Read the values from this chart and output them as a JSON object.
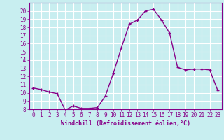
{
  "hours": [
    0,
    1,
    2,
    3,
    4,
    5,
    6,
    7,
    8,
    9,
    10,
    11,
    12,
    13,
    14,
    15,
    16,
    17,
    18,
    19,
    20,
    21,
    22,
    23
  ],
  "values": [
    10.6,
    10.4,
    10.1,
    9.9,
    7.9,
    8.4,
    8.1,
    8.1,
    8.2,
    9.6,
    12.4,
    15.5,
    18.4,
    18.9,
    20.0,
    20.2,
    18.9,
    17.3,
    13.1,
    12.8,
    12.9,
    12.9,
    12.8,
    10.3
  ],
  "line_color": "#880088",
  "marker": "+",
  "marker_color": "#880088",
  "bg_color": "#c8eef0",
  "grid_color": "#ffffff",
  "xlabel": "Windchill (Refroidissement éolien,°C)",
  "xlabel_color": "#880088",
  "tick_color": "#880088",
  "ylim": [
    8,
    21
  ],
  "xlim": [
    -0.5,
    23.5
  ],
  "yticks": [
    8,
    9,
    10,
    11,
    12,
    13,
    14,
    15,
    16,
    17,
    18,
    19,
    20
  ],
  "xticks": [
    0,
    1,
    2,
    3,
    4,
    5,
    6,
    7,
    8,
    9,
    10,
    11,
    12,
    13,
    14,
    15,
    16,
    17,
    18,
    19,
    20,
    21,
    22,
    23
  ],
  "tick_fontsize": 5.5,
  "xlabel_fontsize": 6.0,
  "linewidth": 1.0,
  "markersize": 3.0,
  "markeredgewidth": 0.9
}
